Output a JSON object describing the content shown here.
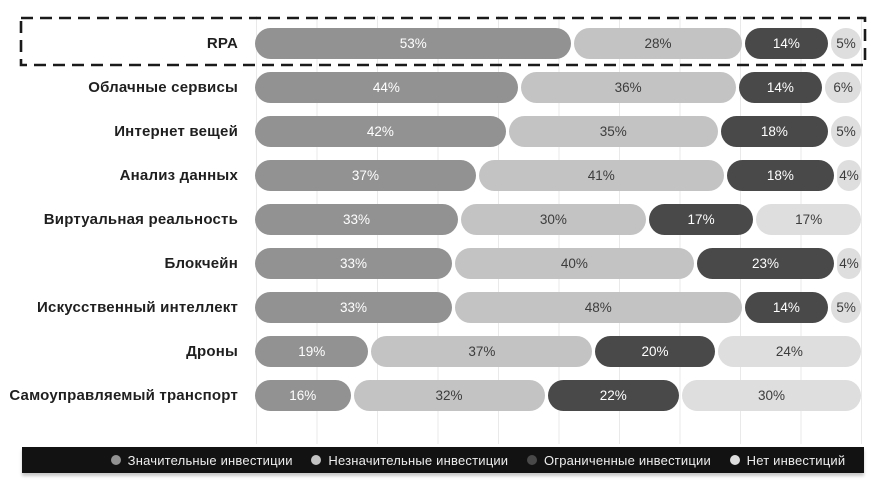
{
  "chart_data": {
    "type": "bar",
    "orientation": "horizontal",
    "stacked": true,
    "unit": "%",
    "title": "",
    "grid": "vertical-light",
    "legend_position": "bottom",
    "highlighted_category": "RPA",
    "categories": [
      "RPA",
      "Облачные сервисы",
      "Интернет вещей",
      "Анализ данных",
      "Виртуальная реальность",
      "Блокчейн",
      "Искусственный интеллект",
      "Дроны",
      "Самоуправляемый транспорт"
    ],
    "series": [
      {
        "name": "Значительные инвестиции",
        "color": "#929292",
        "label_color": "#ffffff",
        "values": [
          53,
          44,
          42,
          37,
          33,
          33,
          33,
          19,
          16
        ]
      },
      {
        "name": "Незначительные инвестиции",
        "color": "#c3c3c3",
        "label_color": "#3c3c3c",
        "values": [
          28,
          36,
          35,
          41,
          30,
          40,
          48,
          37,
          32
        ]
      },
      {
        "name": "Ограниченные инвестиции",
        "color": "#494949",
        "label_color": "#ffffff",
        "values": [
          14,
          14,
          18,
          18,
          17,
          23,
          14,
          20,
          22
        ]
      },
      {
        "name": "Нет инвестиций",
        "color": "#dedede",
        "label_color": "#3c3c3c",
        "values": [
          5,
          6,
          5,
          4,
          17,
          4,
          5,
          24,
          30
        ]
      }
    ]
  },
  "legend_bar_color": "#121212",
  "highlight_box_color": "#1a1a1a"
}
